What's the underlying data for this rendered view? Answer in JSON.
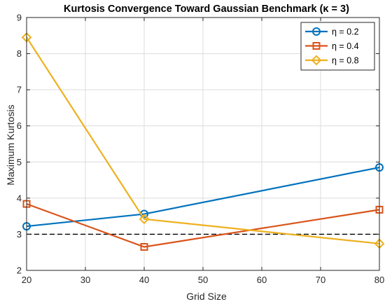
{
  "chart_data": {
    "type": "line",
    "title": "Kurtosis Convergence Toward Gaussian Benchmark (κ = 3)",
    "xlabel": "Grid Size",
    "ylabel": "Maximum Kurtosis",
    "xlim": [
      20,
      80
    ],
    "ylim": [
      2,
      9
    ],
    "xticks": [
      20,
      30,
      40,
      50,
      60,
      70,
      80
    ],
    "yticks": [
      2,
      3,
      4,
      5,
      6,
      7,
      8,
      9
    ],
    "grid": true,
    "legend_position": "top-right",
    "x": [
      20,
      40,
      80
    ],
    "reference_line": {
      "y": 3,
      "style": "dashed",
      "color": "#000000"
    },
    "series": [
      {
        "name": "η = 0.2",
        "values": [
          3.22,
          3.56,
          4.85
        ],
        "color": "#0072BD",
        "marker": "circle"
      },
      {
        "name": "η = 0.4",
        "values": [
          3.84,
          2.65,
          3.68
        ],
        "color": "#D95319",
        "marker": "square"
      },
      {
        "name": "η = 0.8",
        "values": [
          8.45,
          3.42,
          2.74
        ],
        "color": "#EDB120",
        "marker": "diamond"
      }
    ]
  }
}
